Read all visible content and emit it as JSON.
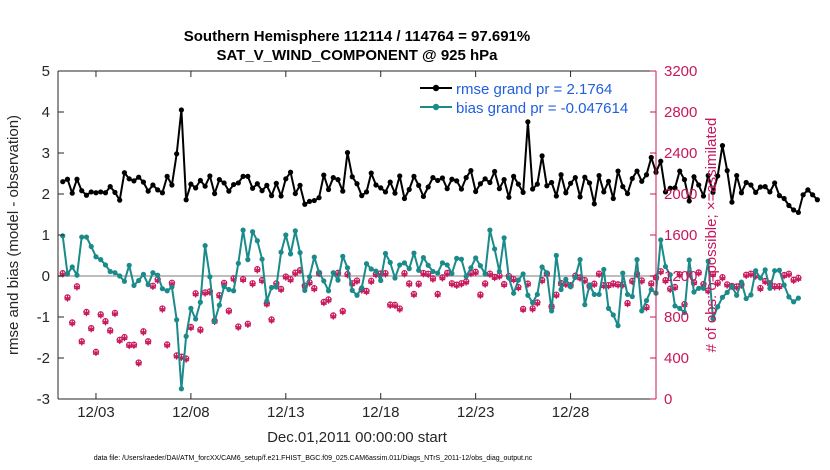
{
  "chart_data": {
    "type": "line",
    "title_line1": "Southern Hemisphere 112114 / 114764 = 97.691%",
    "title_line2": "SAT_V_WIND_COMPONENT @ 925 hPa",
    "xlabel": "Dec.01,2011 00:00:00 start",
    "ylabel_left": "rmse and bias (model - observation)",
    "ylabel_right": "# of obs: o=possible; ×=assimilated",
    "footer": "data file: /Users/raeder/DAI/ATM_forcXX/CAM6_setup/f.e21.FHIST_BGC.f09_025.CAM6assim.011/Diags_NTrS_2011-12/obs_diag_output.nc",
    "x_range_days": [
      0,
      31.5
    ],
    "x_ticks": [
      {
        "day": 2,
        "label": "12/03"
      },
      {
        "day": 7,
        "label": "12/08"
      },
      {
        "day": 12,
        "label": "12/13"
      },
      {
        "day": 17,
        "label": "12/18"
      },
      {
        "day": 22,
        "label": "12/23"
      },
      {
        "day": 27,
        "label": "12/28"
      }
    ],
    "ylim_left": [
      -3,
      5
    ],
    "yticks_left": [
      "-3",
      "-2",
      "-1",
      "0",
      "1",
      "2",
      "3",
      "4",
      "5"
    ],
    "ylim_right": [
      0,
      3200
    ],
    "yticks_right": [
      "0",
      "400",
      "800",
      "1200",
      "1600",
      "2000",
      "2400",
      "2800",
      "3200"
    ],
    "zero_line": 0,
    "legend_position": "top-right",
    "colors": {
      "rmse": "#000000",
      "bias": "#1a8a8a",
      "obs": "#c8175b",
      "zero": "#bdbdbd",
      "legend_text": "#1f5fe0"
    },
    "series": [
      {
        "name": "rmse grand pr = 2.1764",
        "axis": "left",
        "values": [
          2.3,
          2.36,
          2.02,
          2.36,
          2.08,
          1.97,
          2.05,
          2.03,
          2.05,
          2.03,
          2.18,
          2.04,
          1.85,
          2.52,
          2.37,
          2.32,
          2.41,
          2.29,
          2.07,
          2.22,
          2.1,
          2.03,
          2.43,
          2.22,
          2.98,
          4.05,
          1.86,
          2.24,
          2.15,
          2.33,
          2.19,
          2.44,
          2.01,
          2.35,
          2.27,
          2.07,
          2.23,
          2.27,
          2.43,
          2.43,
          2.14,
          2.25,
          2.08,
          2.21,
          1.96,
          2.26,
          1.95,
          2.37,
          2.53,
          2.01,
          2.21,
          1.75,
          1.82,
          1.84,
          1.91,
          2.46,
          2.11,
          2.4,
          2.35,
          2.07,
          3.01,
          2.42,
          2.25,
          1.96,
          2.05,
          2.51,
          2.22,
          2.15,
          2.05,
          2.29,
          2.02,
          2.44,
          1.89,
          2.11,
          2.43,
          2.21,
          1.94,
          2.17,
          2.4,
          2.33,
          2.39,
          2.13,
          2.36,
          2.32,
          2.12,
          2.4,
          2.57,
          2.06,
          2.25,
          2.37,
          2.28,
          2.55,
          2.13,
          2.35,
          1.92,
          2.43,
          2.24,
          2.04,
          3.76,
          2.12,
          2.24,
          2.93,
          2.2,
          2.28,
          1.95,
          2.47,
          2.03,
          2.26,
          2.4,
          1.93,
          2.41,
          2.27,
          1.76,
          2.45,
          2.05,
          2.31,
          1.89,
          2.56,
          2.18,
          2.01,
          2.38,
          2.56,
          2.31,
          2.47,
          2.89,
          2.53,
          2.8,
          2.05,
          2.14,
          2.15,
          2.56,
          2.35,
          1.83,
          2.42,
          2.22,
          1.95,
          2.45,
          2.04,
          2.44,
          3.18,
          2.57,
          1.8,
          2.45,
          2.03,
          2.28,
          2.22,
          2.04,
          2.17,
          2.18,
          2.05,
          2.27,
          1.96,
          1.89,
          1.72,
          1.61,
          1.55,
          1.98,
          2.1,
          1.98,
          1.86
        ]
      },
      {
        "name": "bias grand pr = -0.047614",
        "axis": "left",
        "values": [
          0.98,
          0.05,
          0.22,
          0.02,
          0.95,
          0.95,
          0.72,
          0.47,
          0.4,
          0.27,
          0.11,
          0.08,
          0.0,
          -0.13,
          0.26,
          -0.23,
          -0.11,
          0.04,
          -0.21,
          0.08,
          0.02,
          -0.31,
          -0.36,
          -0.27,
          -1.07,
          -2.75,
          -1.47,
          -0.79,
          -1.05,
          -0.64,
          0.74,
          -0.02,
          -1.11,
          -0.71,
          -0.26,
          -0.33,
          -0.36,
          0.31,
          1.12,
          0.4,
          1.08,
          0.86,
          0.41,
          -0.61,
          -0.28,
          -0.27,
          0.58,
          1.0,
          0.54,
          1.1,
          0.57,
          -0.35,
          -0.02,
          0.46,
          0.09,
          -0.12,
          -0.36,
          0.08,
          -0.1,
          0.48,
          0.2,
          -0.35,
          -0.47,
          -0.29,
          0.3,
          0.17,
          0.12,
          -0.11,
          0.55,
          0.33,
          -0.05,
          0.27,
          0.32,
          0.18,
          0.56,
          0.14,
          0.45,
          0.26,
          0.11,
          0.07,
          0.32,
          0.27,
          0.06,
          0.43,
          0.41,
          -0.01,
          0.2,
          0.44,
          0.25,
          0.05,
          1.12,
          0.66,
          0.11,
          0.93,
          -0.05,
          -0.42,
          -0.1,
          0.05,
          -0.47,
          -0.65,
          -0.45,
          0.22,
          0.08,
          -0.85,
          0.5,
          -0.33,
          -0.08,
          -0.26,
          -0.03,
          0.4,
          -0.7,
          -0.22,
          -0.45,
          -0.45,
          0.16,
          -0.79,
          -0.95,
          -1.21,
          0.07,
          -0.45,
          -0.5,
          0.4,
          -0.85,
          -0.6,
          -0.33,
          -0.42,
          0.88,
          0.23,
          0.03,
          -0.73,
          -0.79,
          -0.89,
          0.39,
          -0.39,
          -0.3,
          -0.3,
          0.36,
          -1.04,
          -0.75,
          -0.52,
          -0.4,
          -0.25,
          -0.47,
          -0.15,
          -0.55,
          -0.46,
          0.13,
          -0.05,
          0.15,
          -0.3,
          0.13,
          0.14,
          -0.22,
          -0.51,
          -0.63,
          -0.54
        ]
      },
      {
        "name": "obs possible/assimilated",
        "axis": "right",
        "values": [
          1217,
          981,
          737,
          1089,
          553,
          839,
          681,
          450,
          816,
          749,
          660,
          830,
          567,
          594,
          518,
          520,
          346,
          650,
          553,
          1095,
          1156,
          873,
          522,
          1124,
          415,
          403,
          385,
          693,
          1021,
          667,
          1030,
          1039,
          753,
          1003,
          1123,
          852,
          1166,
          697,
          1160,
          724,
          1119,
          1256,
          1150,
          922,
          766,
          1117,
          1064,
          1185,
          1159,
          1223,
          1247,
          1096,
          1128,
          1071,
          1220,
          937,
          961,
          805,
          1221,
          849,
          1209,
          1119,
          1146,
          1059,
          1044,
          1143,
          1209,
          1215,
          1217,
          911,
          909,
          873,
          1217,
          1117,
          1015,
          1115,
          1219,
          1212,
          1166,
          1015,
          1177,
          1220,
          1119,
          1105,
          1119,
          1137,
          1220,
          1231,
          1009,
          1117,
          1213,
          1181,
          1194,
          1111,
          1190,
          1160,
          1082,
          869,
          1116,
          874,
          932,
          1150,
          1214,
          895,
          1008,
          1121,
          1115,
          1100,
          1193,
          1176,
          1150,
          1096,
          1115,
          1213,
          1101,
          1101,
          1117,
          1109,
          1109,
          926,
          1143,
          1211,
          1147,
          887,
          1118,
          1177,
          1236,
          1149,
          1066,
          1083,
          1206,
          916,
          1215,
          1129,
          1225,
          1112,
          1049,
          1208,
          1124,
          1178,
          1108,
          1093,
          1088,
          1107,
          1202,
          1213,
          1195,
          1073,
          1142,
          1119,
          1090,
          1091,
          1199,
          1212,
          1154,
          1172
        ]
      }
    ]
  }
}
